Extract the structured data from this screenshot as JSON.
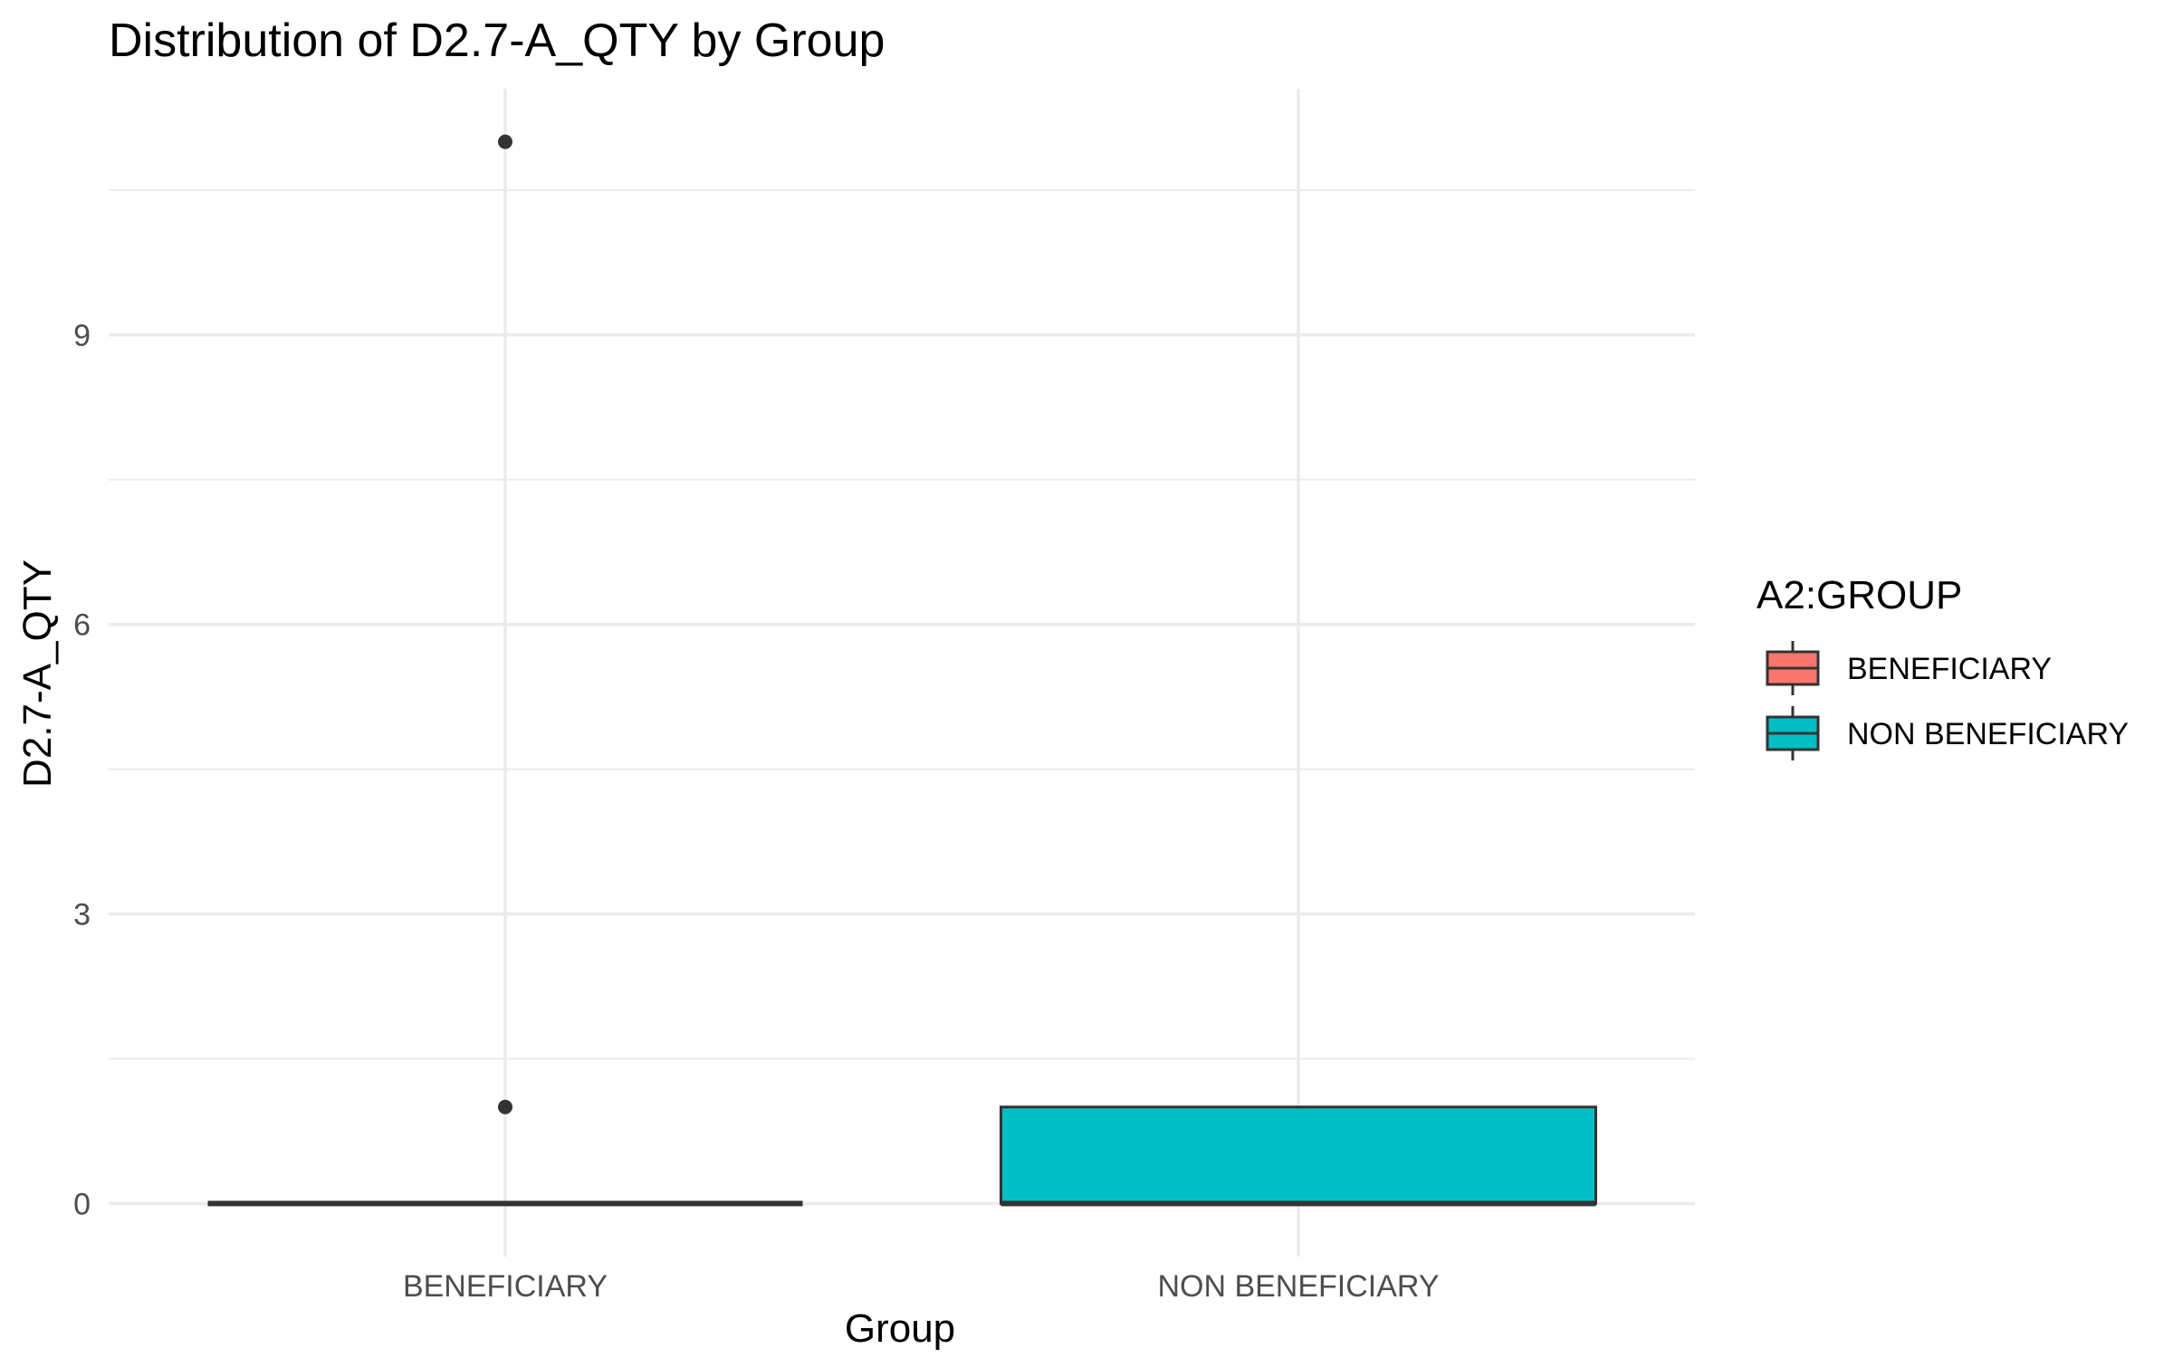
{
  "chart_data": {
    "type": "boxplot",
    "title": "Distribution of D2.7-A_QTY by Group",
    "xlabel": "Group",
    "ylabel": "D2.7-A_QTY",
    "categories": [
      "BENEFICIARY",
      "NON BENEFICIARY"
    ],
    "ylim": [
      -0.55,
      11.55
    ],
    "yticks": [
      0,
      3,
      6,
      9
    ],
    "grid": true,
    "legend": {
      "title": "A2:GROUP",
      "placement": "right",
      "entries": [
        "BENEFICIARY",
        "NON BENEFICIARY"
      ]
    },
    "series": [
      {
        "name": "BENEFICIARY",
        "color": "#F8766D",
        "min": 0,
        "q1": 0,
        "median": 0,
        "q3": 0,
        "max": 0,
        "outliers": [
          1,
          11
        ]
      },
      {
        "name": "NON BENEFICIARY",
        "color": "#00BFC4",
        "min": 0,
        "q1": 0,
        "median": 0,
        "q3": 1,
        "max": 1,
        "outliers": []
      }
    ]
  }
}
